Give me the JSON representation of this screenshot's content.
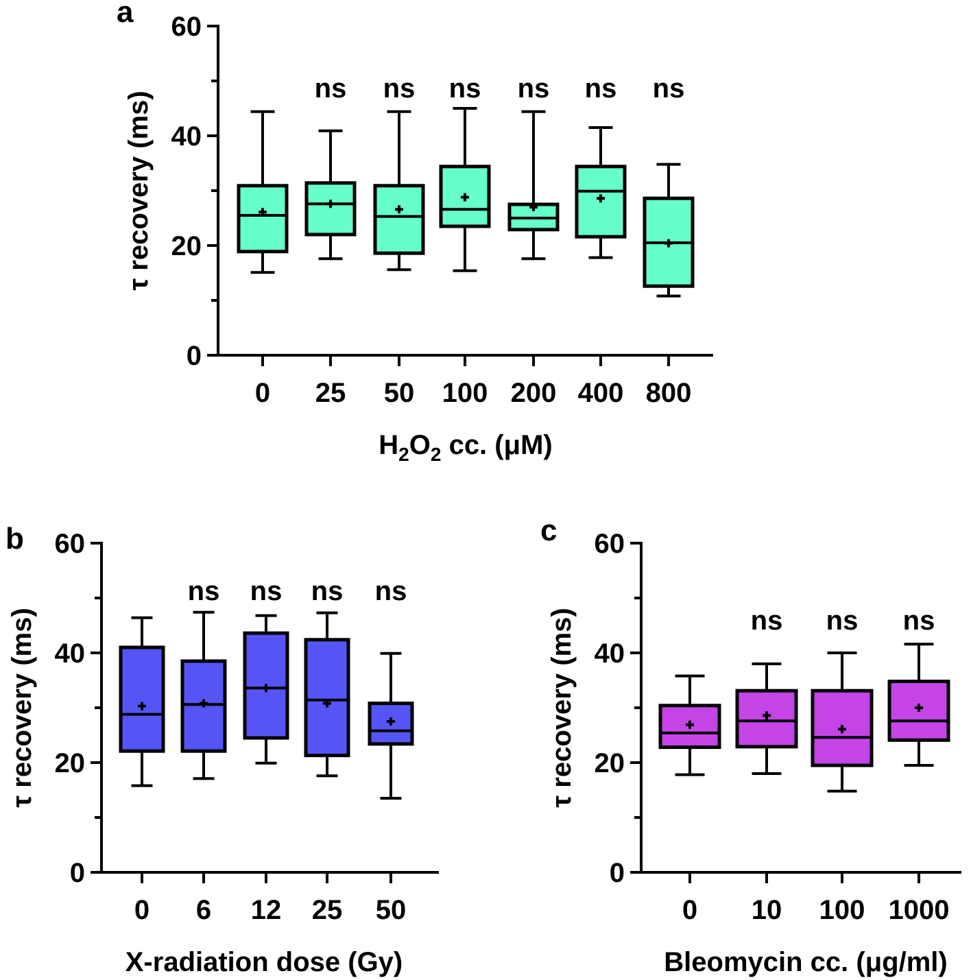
{
  "chart_data": [
    {
      "type": "box",
      "panel_label": "a",
      "title": "",
      "xlabel": "H₂O₂ cc. (μM)",
      "xlabel_parts": {
        "a": "H",
        "sub1": "2",
        "b": "O",
        "sub2": "2",
        "c": " cc. (μM)"
      },
      "ylabel": "τ recovery (ms)",
      "ylim": [
        0,
        60
      ],
      "yticks": [
        0,
        20,
        40,
        60
      ],
      "ytick_labels": [
        "0",
        "20",
        "40",
        "60"
      ],
      "minor_yticks": [
        10,
        30,
        50
      ],
      "color": "#66FFCC",
      "categories": [
        "0",
        "25",
        "50",
        "100",
        "200",
        "400",
        "800"
      ],
      "significance": [
        "",
        "ns",
        "ns",
        "ns",
        "ns",
        "ns",
        "ns"
      ],
      "boxes": [
        {
          "min": 15.1,
          "q1": 18.9,
          "median": 25.5,
          "q3": 30.9,
          "max": 44.4,
          "mean": 26.1
        },
        {
          "min": 17.6,
          "q1": 22.0,
          "median": 27.6,
          "q3": 31.4,
          "max": 40.9,
          "mean": 27.6
        },
        {
          "min": 15.6,
          "q1": 18.6,
          "median": 25.3,
          "q3": 30.9,
          "max": 44.4,
          "mean": 26.6
        },
        {
          "min": 15.4,
          "q1": 23.5,
          "median": 26.6,
          "q3": 34.4,
          "max": 45.0,
          "mean": 28.8
        },
        {
          "min": 17.6,
          "q1": 22.9,
          "median": 25.0,
          "q3": 27.5,
          "max": 44.4,
          "mean": 27.0
        },
        {
          "min": 17.8,
          "q1": 21.6,
          "median": 29.9,
          "q3": 34.4,
          "max": 41.5,
          "mean": 28.6
        },
        {
          "min": 10.8,
          "q1": 12.6,
          "median": 20.5,
          "q3": 28.6,
          "max": 34.8,
          "mean": 20.4
        }
      ]
    },
    {
      "type": "box",
      "panel_label": "b",
      "title": "",
      "xlabel": "X-radiation dose (Gy)",
      "ylabel": "τ recovery (ms)",
      "ylim": [
        0,
        60
      ],
      "yticks": [
        0,
        20,
        40,
        60
      ],
      "ytick_labels": [
        "0",
        "20",
        "40",
        "60"
      ],
      "minor_yticks": [
        10,
        30,
        50
      ],
      "color": "#5555F5",
      "categories": [
        "0",
        "6",
        "12",
        "25",
        "50"
      ],
      "significance": [
        "",
        "ns",
        "ns",
        "ns",
        "ns"
      ],
      "boxes": [
        {
          "min": 15.8,
          "q1": 22.1,
          "median": 28.8,
          "q3": 41.0,
          "max": 46.4,
          "mean": 30.3
        },
        {
          "min": 17.1,
          "q1": 22.1,
          "median": 30.6,
          "q3": 38.5,
          "max": 47.4,
          "mean": 30.8
        },
        {
          "min": 19.9,
          "q1": 24.5,
          "median": 33.6,
          "q3": 43.6,
          "max": 46.8,
          "mean": 33.6
        },
        {
          "min": 17.6,
          "q1": 21.3,
          "median": 31.4,
          "q3": 42.4,
          "max": 47.3,
          "mean": 30.8
        },
        {
          "min": 13.5,
          "q1": 23.4,
          "median": 25.8,
          "q3": 30.8,
          "max": 39.9,
          "mean": 27.5
        }
      ]
    },
    {
      "type": "box",
      "panel_label": "c",
      "title": "",
      "xlabel": "Bleomycin cc. (μg/ml)",
      "ylabel": "τ recovery (ms)",
      "ylim": [
        0,
        60
      ],
      "yticks": [
        0,
        20,
        40,
        60
      ],
      "ytick_labels": [
        "0",
        "20",
        "40",
        "60"
      ],
      "minor_yticks": [
        10,
        30,
        50
      ],
      "color": "#C444E6",
      "categories": [
        "0",
        "10",
        "100",
        "1000"
      ],
      "significance": [
        "",
        "ns",
        "ns",
        "ns"
      ],
      "boxes": [
        {
          "min": 17.8,
          "q1": 22.8,
          "median": 25.4,
          "q3": 30.4,
          "max": 35.8,
          "mean": 26.9
        },
        {
          "min": 18.0,
          "q1": 22.9,
          "median": 27.6,
          "q3": 33.1,
          "max": 38.0,
          "mean": 28.6
        },
        {
          "min": 14.8,
          "q1": 19.5,
          "median": 24.6,
          "q3": 33.1,
          "max": 40.0,
          "mean": 26.1
        },
        {
          "min": 19.5,
          "q1": 24.1,
          "median": 27.6,
          "q3": 34.8,
          "max": 41.6,
          "mean": 30.0
        }
      ]
    }
  ]
}
